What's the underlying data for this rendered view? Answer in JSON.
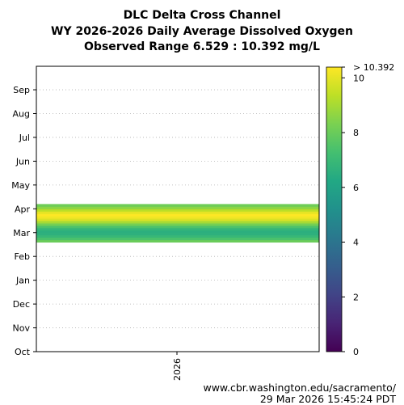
{
  "chart_data": {
    "type": "heatmap",
    "title_lines": [
      "DLC Delta Cross Channel",
      "WY 2026-2026 Daily Average Dissolved Oxygen",
      "Observed Range 6.529 : 10.392 mg/L"
    ],
    "y_categories": [
      "Oct",
      "Nov",
      "Dec",
      "Jan",
      "Feb",
      "Mar",
      "Apr",
      "May",
      "Jun",
      "Jul",
      "Aug",
      "Sep"
    ],
    "x_categories": [
      "2026"
    ],
    "observed_range": [
      6.529,
      10.392
    ],
    "units": "mg/L",
    "colorbar": {
      "colormap": "viridis",
      "range": [
        0,
        10.392
      ],
      "ticks": [
        0,
        2,
        4,
        6,
        8,
        10
      ],
      "max_label": "> 10.392"
    },
    "profile": [
      {
        "month_pos": 4.65,
        "value": 8.0
      },
      {
        "month_pos": 4.75,
        "value": 7.4
      },
      {
        "month_pos": 4.85,
        "value": 6.9
      },
      {
        "month_pos": 4.95,
        "value": 6.6
      },
      {
        "month_pos": 5.05,
        "value": 6.53
      },
      {
        "month_pos": 5.15,
        "value": 6.8
      },
      {
        "month_pos": 5.25,
        "value": 7.4
      },
      {
        "month_pos": 5.35,
        "value": 8.2
      },
      {
        "month_pos": 5.45,
        "value": 9.0
      },
      {
        "month_pos": 5.55,
        "value": 9.8
      },
      {
        "month_pos": 5.65,
        "value": 10.2
      },
      {
        "month_pos": 5.75,
        "value": 10.39
      },
      {
        "month_pos": 5.85,
        "value": 10.0
      },
      {
        "month_pos": 5.95,
        "value": 9.3
      },
      {
        "month_pos": 6.05,
        "value": 8.6
      },
      {
        "month_pos": 6.15,
        "value": 8.1
      }
    ],
    "grid": true
  },
  "footer": {
    "url": "www.cbr.washington.edu/sacramento/",
    "timestamp": "29 Mar 2026 15:45:24 PDT"
  }
}
